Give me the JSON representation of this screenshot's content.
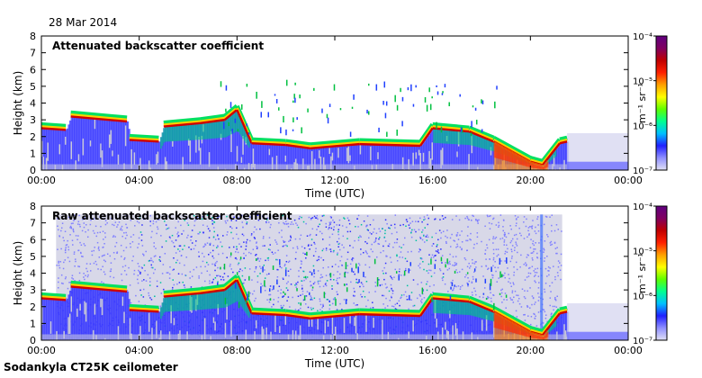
{
  "header": {
    "date": "28 Mar 2014"
  },
  "footer": {
    "instrument": "Sodankyla CT25K ceilometer"
  },
  "colorbar": {
    "units": "m⁻¹ sr⁻¹",
    "ticks": [
      "10⁻⁴",
      "10⁻⁵",
      "10⁻⁶",
      "10⁻⁷"
    ],
    "colors": [
      "#e0e0f4",
      "#9090ff",
      "#2020ff",
      "#00c0ff",
      "#00ff90",
      "#60ff00",
      "#ffff00",
      "#ffa000",
      "#ff2000",
      "#c00000",
      "#800060",
      "#600080"
    ]
  },
  "chart_data": [
    {
      "type": "heatmap",
      "title": "Attenuated backscatter coefficient",
      "xlabel": "Time (UTC)",
      "ylabel": "Height (km)",
      "xticks": [
        "00:00",
        "04:00",
        "08:00",
        "12:00",
        "16:00",
        "20:00",
        "00:00"
      ],
      "yticks": [
        "0",
        "1",
        "2",
        "3",
        "4",
        "5",
        "6",
        "7",
        "8"
      ],
      "xlim_hours": [
        0,
        24
      ],
      "ylim_km": [
        0,
        8
      ],
      "cloud_base_km": [
        {
          "t": 0.0,
          "h": 2.5
        },
        {
          "t": 1.0,
          "h": 2.4
        },
        {
          "t": 1.2,
          "h": 3.2
        },
        {
          "t": 3.5,
          "h": 2.9
        },
        {
          "t": 3.6,
          "h": 1.8
        },
        {
          "t": 4.8,
          "h": 1.7
        },
        {
          "t": 5.0,
          "h": 2.6
        },
        {
          "t": 6.5,
          "h": 2.8
        },
        {
          "t": 7.5,
          "h": 3.0
        },
        {
          "t": 8.0,
          "h": 3.6
        },
        {
          "t": 8.6,
          "h": 1.6
        },
        {
          "t": 10.0,
          "h": 1.5
        },
        {
          "t": 11.0,
          "h": 1.3
        },
        {
          "t": 13.0,
          "h": 1.55
        },
        {
          "t": 15.5,
          "h": 1.45
        },
        {
          "t": 16.0,
          "h": 2.5
        },
        {
          "t": 17.5,
          "h": 2.3
        },
        {
          "t": 18.5,
          "h": 1.7
        },
        {
          "t": 20.0,
          "h": 0.5
        },
        {
          "t": 20.5,
          "h": 0.3
        },
        {
          "t": 21.2,
          "h": 1.6
        },
        {
          "t": 21.5,
          "h": 1.7
        }
      ]
    },
    {
      "type": "heatmap",
      "title": "Raw attenuated backscatter coefficient",
      "xlabel": "Time (UTC)",
      "ylabel": "Height (km)",
      "xticks": [
        "00:00",
        "04:00",
        "08:00",
        "12:00",
        "16:00",
        "20:00",
        "00:00"
      ],
      "yticks": [
        "0",
        "1",
        "2",
        "3",
        "4",
        "5",
        "6",
        "7",
        "8"
      ],
      "xlim_hours": [
        0,
        24
      ],
      "ylim_km": [
        0,
        8
      ],
      "noise_top_km": 7.5,
      "cloud_base_km": [
        {
          "t": 0.0,
          "h": 2.5
        },
        {
          "t": 1.0,
          "h": 2.4
        },
        {
          "t": 1.2,
          "h": 3.2
        },
        {
          "t": 3.5,
          "h": 2.9
        },
        {
          "t": 3.6,
          "h": 1.8
        },
        {
          "t": 4.8,
          "h": 1.7
        },
        {
          "t": 5.0,
          "h": 2.6
        },
        {
          "t": 6.5,
          "h": 2.8
        },
        {
          "t": 7.5,
          "h": 3.0
        },
        {
          "t": 8.0,
          "h": 3.6
        },
        {
          "t": 8.6,
          "h": 1.6
        },
        {
          "t": 10.0,
          "h": 1.5
        },
        {
          "t": 11.0,
          "h": 1.3
        },
        {
          "t": 13.0,
          "h": 1.55
        },
        {
          "t": 15.5,
          "h": 1.45
        },
        {
          "t": 16.0,
          "h": 2.5
        },
        {
          "t": 17.5,
          "h": 2.3
        },
        {
          "t": 18.5,
          "h": 1.7
        },
        {
          "t": 20.0,
          "h": 0.5
        },
        {
          "t": 20.5,
          "h": 0.3
        },
        {
          "t": 21.2,
          "h": 1.6
        },
        {
          "t": 21.5,
          "h": 1.7
        }
      ]
    }
  ]
}
